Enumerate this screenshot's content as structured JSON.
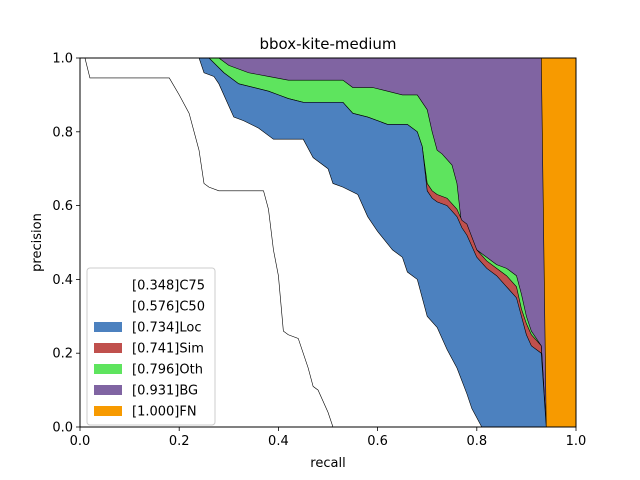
{
  "chart_data": {
    "type": "area",
    "title": "bbox-kite-medium",
    "xlabel": "recall",
    "ylabel": "precision",
    "xlim": [
      0,
      1
    ],
    "ylim": [
      0,
      1
    ],
    "xticks": [
      "0.0",
      "0.2",
      "0.4",
      "0.6",
      "0.8",
      "1.0"
    ],
    "yticks": [
      "0.0",
      "0.2",
      "0.4",
      "0.6",
      "0.8",
      "1.0"
    ],
    "grid": false,
    "legend_position": "lower-left",
    "series": [
      {
        "name": "[0.348]C75",
        "color": "#ffffff",
        "points": [
          [
            0.0,
            1.0
          ],
          [
            0.01,
            1.0
          ],
          [
            0.02,
            0.946
          ],
          [
            0.18,
            0.946
          ],
          [
            0.2,
            0.9
          ],
          [
            0.22,
            0.85
          ],
          [
            0.24,
            0.75
          ],
          [
            0.25,
            0.66
          ],
          [
            0.26,
            0.65
          ],
          [
            0.28,
            0.64
          ],
          [
            0.37,
            0.64
          ],
          [
            0.38,
            0.59
          ],
          [
            0.39,
            0.48
          ],
          [
            0.4,
            0.41
          ],
          [
            0.41,
            0.26
          ],
          [
            0.42,
            0.25
          ],
          [
            0.44,
            0.24
          ],
          [
            0.46,
            0.16
          ],
          [
            0.47,
            0.11
          ],
          [
            0.48,
            0.1
          ],
          [
            0.5,
            0.04
          ],
          [
            0.51,
            0.0
          ]
        ]
      },
      {
        "name": "[0.576]C50",
        "color": "#ffffff",
        "points": [
          [
            0.0,
            1.0
          ],
          [
            0.24,
            1.0
          ],
          [
            0.25,
            0.96
          ],
          [
            0.27,
            0.95
          ],
          [
            0.28,
            0.93
          ],
          [
            0.3,
            0.87
          ],
          [
            0.31,
            0.84
          ],
          [
            0.33,
            0.83
          ],
          [
            0.36,
            0.81
          ],
          [
            0.39,
            0.78
          ],
          [
            0.45,
            0.78
          ],
          [
            0.47,
            0.73
          ],
          [
            0.5,
            0.7
          ],
          [
            0.51,
            0.66
          ],
          [
            0.53,
            0.65
          ],
          [
            0.56,
            0.63
          ],
          [
            0.58,
            0.57
          ],
          [
            0.6,
            0.53
          ],
          [
            0.63,
            0.48
          ],
          [
            0.65,
            0.46
          ],
          [
            0.66,
            0.42
          ],
          [
            0.68,
            0.4
          ],
          [
            0.7,
            0.3
          ],
          [
            0.72,
            0.27
          ],
          [
            0.74,
            0.21
          ],
          [
            0.76,
            0.16
          ],
          [
            0.78,
            0.09
          ],
          [
            0.79,
            0.05
          ],
          [
            0.81,
            0.0
          ]
        ]
      },
      {
        "name": "[0.734]Loc",
        "color": "#4c81bf",
        "points": [
          [
            0.0,
            1.0
          ],
          [
            0.26,
            1.0
          ],
          [
            0.29,
            0.96
          ],
          [
            0.32,
            0.93
          ],
          [
            0.38,
            0.91
          ],
          [
            0.4,
            0.9
          ],
          [
            0.42,
            0.89
          ],
          [
            0.45,
            0.88
          ],
          [
            0.53,
            0.88
          ],
          [
            0.55,
            0.85
          ],
          [
            0.58,
            0.84
          ],
          [
            0.62,
            0.82
          ],
          [
            0.66,
            0.82
          ],
          [
            0.68,
            0.8
          ],
          [
            0.69,
            0.76
          ],
          [
            0.7,
            0.64
          ],
          [
            0.71,
            0.62
          ],
          [
            0.72,
            0.61
          ],
          [
            0.74,
            0.6
          ],
          [
            0.76,
            0.57
          ],
          [
            0.77,
            0.54
          ],
          [
            0.78,
            0.52
          ],
          [
            0.8,
            0.46
          ],
          [
            0.82,
            0.43
          ],
          [
            0.84,
            0.41
          ],
          [
            0.86,
            0.38
          ],
          [
            0.88,
            0.35
          ],
          [
            0.89,
            0.3
          ],
          [
            0.9,
            0.25
          ],
          [
            0.91,
            0.22
          ],
          [
            0.93,
            0.2
          ],
          [
            0.94,
            0.0
          ]
        ]
      },
      {
        "name": "[0.741]Sim",
        "color": "#c0504d",
        "points": [
          [
            0.0,
            1.0
          ],
          [
            0.26,
            1.0
          ],
          [
            0.29,
            0.96
          ],
          [
            0.32,
            0.93
          ],
          [
            0.38,
            0.91
          ],
          [
            0.4,
            0.9
          ],
          [
            0.42,
            0.89
          ],
          [
            0.45,
            0.88
          ],
          [
            0.53,
            0.88
          ],
          [
            0.55,
            0.85
          ],
          [
            0.58,
            0.84
          ],
          [
            0.62,
            0.82
          ],
          [
            0.66,
            0.82
          ],
          [
            0.68,
            0.8
          ],
          [
            0.69,
            0.76
          ],
          [
            0.7,
            0.66
          ],
          [
            0.71,
            0.64
          ],
          [
            0.72,
            0.63
          ],
          [
            0.74,
            0.62
          ],
          [
            0.76,
            0.59
          ],
          [
            0.77,
            0.56
          ],
          [
            0.78,
            0.55
          ],
          [
            0.8,
            0.48
          ],
          [
            0.82,
            0.45
          ],
          [
            0.84,
            0.43
          ],
          [
            0.86,
            0.41
          ],
          [
            0.88,
            0.38
          ],
          [
            0.89,
            0.32
          ],
          [
            0.9,
            0.28
          ],
          [
            0.91,
            0.25
          ],
          [
            0.93,
            0.22
          ],
          [
            0.94,
            0.0
          ]
        ]
      },
      {
        "name": "[0.796]Oth",
        "color": "#5ee45e",
        "points": [
          [
            0.0,
            1.0
          ],
          [
            0.28,
            1.0
          ],
          [
            0.3,
            0.98
          ],
          [
            0.34,
            0.96
          ],
          [
            0.38,
            0.95
          ],
          [
            0.42,
            0.94
          ],
          [
            0.45,
            0.94
          ],
          [
            0.53,
            0.94
          ],
          [
            0.55,
            0.92
          ],
          [
            0.59,
            0.92
          ],
          [
            0.62,
            0.91
          ],
          [
            0.65,
            0.9
          ],
          [
            0.68,
            0.9
          ],
          [
            0.7,
            0.86
          ],
          [
            0.71,
            0.8
          ],
          [
            0.72,
            0.75
          ],
          [
            0.73,
            0.74
          ],
          [
            0.75,
            0.71
          ],
          [
            0.76,
            0.66
          ],
          [
            0.77,
            0.54
          ],
          [
            0.78,
            0.52
          ],
          [
            0.8,
            0.48
          ],
          [
            0.82,
            0.46
          ],
          [
            0.84,
            0.44
          ],
          [
            0.86,
            0.43
          ],
          [
            0.88,
            0.41
          ],
          [
            0.89,
            0.36
          ],
          [
            0.9,
            0.3
          ],
          [
            0.91,
            0.26
          ],
          [
            0.93,
            0.22
          ],
          [
            0.94,
            0.0
          ]
        ]
      },
      {
        "name": "[0.931]BG",
        "color": "#8064a2",
        "points": [
          [
            0.0,
            1.0
          ],
          [
            0.93,
            1.0
          ],
          [
            0.94,
            0.0
          ]
        ]
      },
      {
        "name": "[1.000]FN",
        "color": "#f79a00",
        "points": [
          [
            0.0,
            1.0
          ],
          [
            1.0,
            1.0
          ],
          [
            1.0,
            0.0
          ]
        ]
      }
    ]
  }
}
